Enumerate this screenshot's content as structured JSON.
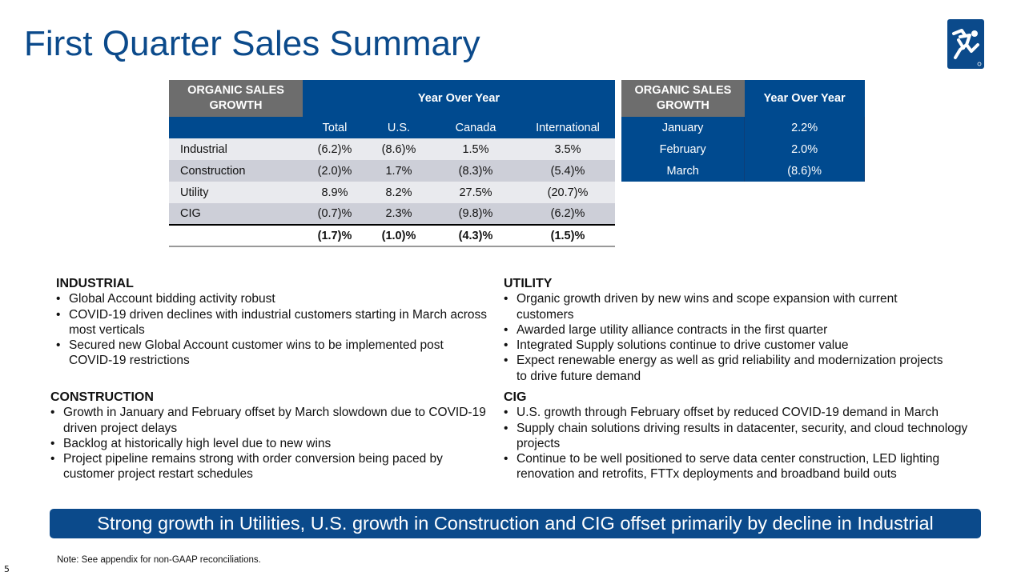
{
  "title": "First Quarter Sales Summary",
  "table1": {
    "corner": "ORGANIC SALES GROWTH",
    "group": "Year Over Year",
    "columns": [
      "Total",
      "U.S.",
      "Canada",
      "International"
    ],
    "rows": [
      {
        "label": "Industrial",
        "values": [
          "(6.2)%",
          "(8.6)%",
          "1.5%",
          "3.5%"
        ]
      },
      {
        "label": "Construction",
        "values": [
          "(2.0)%",
          "1.7%",
          "(8.3)%",
          "(5.4)%"
        ]
      },
      {
        "label": "Utility",
        "values": [
          "8.9%",
          "8.2%",
          "27.5%",
          "(20.7)%"
        ]
      },
      {
        "label": "CIG",
        "values": [
          "(0.7)%",
          "2.3%",
          "(9.8)%",
          "(6.2)%"
        ]
      }
    ],
    "total": [
      "(1.7)%",
      "(1.0)%",
      "(4.3)%",
      "(1.5)%"
    ]
  },
  "table2": {
    "corner": "ORGANIC SALES GROWTH",
    "header": "Year Over Year",
    "rows": [
      {
        "label": "January",
        "value": "2.2%"
      },
      {
        "label": "February",
        "value": "2.0%"
      },
      {
        "label": "March",
        "value": "(8.6)%"
      }
    ]
  },
  "sections": {
    "industrial": {
      "title": "INDUSTRIAL",
      "bullets": [
        "Global Account bidding activity robust",
        "COVID-19 driven declines with industrial customers starting in March across most verticals",
        "Secured new Global Account customer wins to be implemented post COVID-19 restrictions"
      ]
    },
    "construction": {
      "title": "CONSTRUCTION",
      "bullets": [
        "Growth in January and February offset by March slowdown due to COVID-19 driven project delays",
        "Backlog at historically high level due to new wins",
        "Project pipeline remains strong with order conversion being paced by customer project restart schedules"
      ]
    },
    "utility": {
      "title": "UTILITY",
      "bullets": [
        "Organic growth driven by new wins and scope expansion with current customers",
        "Awarded large utility alliance contracts in the first quarter",
        "Integrated Supply solutions continue to drive customer value",
        "Expect renewable energy as well as grid reliability and modernization projects to drive future demand"
      ]
    },
    "cig": {
      "title": "CIG",
      "bullets": [
        "U.S. growth through February offset by reduced COVID-19 demand in March",
        "Supply chain solutions driving results in datacenter, security, and cloud technology projects",
        "Continue to be well positioned to serve data center construction, LED lighting renovation and retrofits, FTTx deployments and broadband build outs"
      ]
    }
  },
  "banner": "Strong growth in Utilities, U.S. growth in Construction and CIG offset primarily by decline in Industrial",
  "note": "Note: See appendix for non-GAAP reconciliations.",
  "page_number": "5",
  "colors": {
    "brand_blue": "#004a8f",
    "header_gray": "#6d6d6d"
  },
  "logo_icon": "running-man-icon"
}
